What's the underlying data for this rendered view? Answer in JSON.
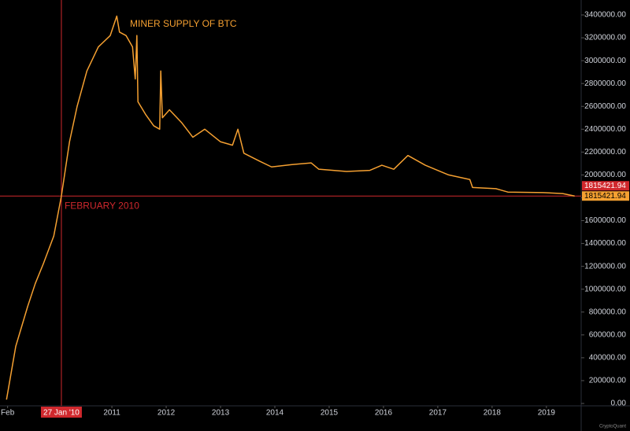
{
  "chart_data": {
    "type": "line",
    "annotations": [
      {
        "text": "MINER SUPPLY OF BTC"
      },
      {
        "text": "FEBRUARY 2010"
      }
    ],
    "series": [
      {
        "name": "Miner Supply of BTC",
        "color": "#f5a031",
        "x": [
          2009.06,
          2009.23,
          2009.45,
          2009.59,
          2009.74,
          2009.93,
          2010.07,
          2010.22,
          2010.36,
          2010.54,
          2010.75,
          2010.97,
          2011.09,
          2011.14,
          2011.26,
          2011.38,
          2011.43,
          2011.46,
          2011.48,
          2011.62,
          2011.77,
          2011.88,
          2011.9,
          2011.93,
          2012.06,
          2012.28,
          2012.49,
          2012.71,
          2013.0,
          2013.22,
          2013.32,
          2013.43,
          2013.72,
          2013.94,
          2014.3,
          2014.67,
          2014.81,
          2015.32,
          2015.75,
          2015.97,
          2016.19,
          2016.45,
          2016.77,
          2017.2,
          2017.59,
          2017.64,
          2018.07,
          2018.29,
          2018.94,
          2019.3,
          2019.52
        ],
        "values": [
          34000,
          500000,
          850000,
          1050000,
          1225000,
          1465000,
          1815000,
          2290000,
          2600000,
          2910000,
          3120000,
          3220000,
          3390000,
          3250000,
          3220000,
          3120000,
          2840000,
          3220000,
          2640000,
          2530000,
          2430000,
          2400000,
          2910000,
          2500000,
          2570000,
          2460000,
          2330000,
          2400000,
          2290000,
          2260000,
          2400000,
          2190000,
          2120000,
          2070000,
          2090000,
          2105000,
          2050000,
          2030000,
          2040000,
          2085000,
          2050000,
          2170000,
          2085000,
          2000000,
          1960000,
          1890000,
          1880000,
          1850000,
          1845000,
          1837000,
          1815421.94
        ]
      }
    ],
    "crosshair": {
      "x": 2010.07,
      "y": 1815421.94,
      "x_label": "27 Jan '10",
      "color": "#d0282d"
    },
    "xlim": [
      2008.94,
      2019.64
    ],
    "xticks": [
      {
        "value": 2009.08,
        "label": "Feb"
      },
      2011,
      2012,
      2013,
      2014,
      2015,
      2016,
      2017,
      2018,
      2019
    ],
    "ylim": [
      0,
      3400000
    ],
    "yticks": [
      {
        "value": 0,
        "label": "0.00"
      },
      {
        "value": 200000,
        "label": "200000.00"
      },
      {
        "value": 400000,
        "label": "400000.00"
      },
      {
        "value": 600000,
        "label": "600000.00"
      },
      {
        "value": 800000,
        "label": "800000.00"
      },
      {
        "value": 1000000,
        "label": "1000000.00"
      },
      {
        "value": 1200000,
        "label": "1200000.00"
      },
      {
        "value": 1400000,
        "label": "1400000.00"
      },
      {
        "value": 1600000,
        "label": "1600000.00"
      },
      {
        "value": 1800000,
        "label": "1800000.00"
      },
      {
        "value": 2000000,
        "label": "2000000.00"
      },
      {
        "value": 2200000,
        "label": "2200000.00"
      },
      {
        "value": 2400000,
        "label": "2400000.00"
      },
      {
        "value": 2600000,
        "label": "2600000.00"
      },
      {
        "value": 2800000,
        "label": "2800000.00"
      },
      {
        "value": 3000000,
        "label": "3000000.00"
      },
      {
        "value": 3200000,
        "label": "3200000.00"
      },
      {
        "value": 3400000,
        "label": "3400000.00"
      }
    ],
    "watermark": "CryptoQuant"
  }
}
